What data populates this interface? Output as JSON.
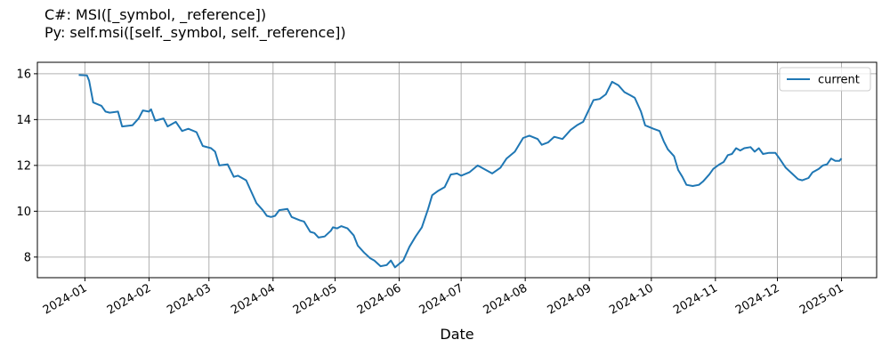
{
  "chart_data": {
    "type": "line",
    "title_lines": [
      "C#: MSI([_symbol, _reference])",
      "Py:  self.msi([self._symbol, self._reference])"
    ],
    "xlabel": "Date",
    "ylabel": "",
    "x_ticks": [
      "2024-01",
      "2024-02",
      "2024-03",
      "2024-04",
      "2024-05",
      "2024-06",
      "2024-07",
      "2024-08",
      "2024-09",
      "2024-10",
      "2024-11",
      "2024-12",
      "2025-01"
    ],
    "y_ticks": [
      8,
      10,
      12,
      14,
      16
    ],
    "xlim": [
      "2023-12-09",
      "2025-01-18"
    ],
    "ylim": [
      7.1,
      16.5
    ],
    "grid": true,
    "legend_position": "top-right",
    "colors": {
      "current": "#1f77b4"
    },
    "series": [
      {
        "name": "current",
        "points": [
          [
            "2023-12-29",
            15.95
          ],
          [
            "2024-01-02",
            15.93
          ],
          [
            "2024-01-03",
            15.7
          ],
          [
            "2024-01-05",
            14.75
          ],
          [
            "2024-01-09",
            14.6
          ],
          [
            "2024-01-11",
            14.35
          ],
          [
            "2024-01-13",
            14.3
          ],
          [
            "2024-01-17",
            14.35
          ],
          [
            "2024-01-19",
            13.7
          ],
          [
            "2024-01-24",
            13.75
          ],
          [
            "2024-01-27",
            14.05
          ],
          [
            "2024-01-29",
            14.4
          ],
          [
            "2024-02-01",
            14.35
          ],
          [
            "2024-02-02",
            14.45
          ],
          [
            "2024-02-04",
            13.95
          ],
          [
            "2024-02-08",
            14.05
          ],
          [
            "2024-02-10",
            13.7
          ],
          [
            "2024-02-14",
            13.9
          ],
          [
            "2024-02-17",
            13.5
          ],
          [
            "2024-02-20",
            13.6
          ],
          [
            "2024-02-24",
            13.45
          ],
          [
            "2024-02-27",
            12.85
          ],
          [
            "2024-03-02",
            12.75
          ],
          [
            "2024-03-04",
            12.6
          ],
          [
            "2024-03-06",
            12.0
          ],
          [
            "2024-03-10",
            12.05
          ],
          [
            "2024-03-13",
            11.5
          ],
          [
            "2024-03-15",
            11.55
          ],
          [
            "2024-03-19",
            11.35
          ],
          [
            "2024-03-21",
            10.95
          ],
          [
            "2024-03-24",
            10.35
          ],
          [
            "2024-03-27",
            10.05
          ],
          [
            "2024-03-29",
            9.8
          ],
          [
            "2024-03-31",
            9.75
          ],
          [
            "2024-04-02",
            9.8
          ],
          [
            "2024-04-04",
            10.05
          ],
          [
            "2024-04-08",
            10.1
          ],
          [
            "2024-04-10",
            9.75
          ],
          [
            "2024-04-14",
            9.6
          ],
          [
            "2024-04-16",
            9.55
          ],
          [
            "2024-04-19",
            9.1
          ],
          [
            "2024-04-21",
            9.05
          ],
          [
            "2024-04-23",
            8.85
          ],
          [
            "2024-04-26",
            8.9
          ],
          [
            "2024-04-29",
            9.15
          ],
          [
            "2024-04-30",
            9.3
          ],
          [
            "2024-05-02",
            9.25
          ],
          [
            "2024-05-04",
            9.35
          ],
          [
            "2024-05-07",
            9.25
          ],
          [
            "2024-05-10",
            8.95
          ],
          [
            "2024-05-12",
            8.5
          ],
          [
            "2024-05-15",
            8.2
          ],
          [
            "2024-05-18",
            7.95
          ],
          [
            "2024-05-20",
            7.85
          ],
          [
            "2024-05-23",
            7.6
          ],
          [
            "2024-05-26",
            7.65
          ],
          [
            "2024-05-28",
            7.85
          ],
          [
            "2024-05-30",
            7.55
          ],
          [
            "2024-06-03",
            7.85
          ],
          [
            "2024-06-06",
            8.45
          ],
          [
            "2024-06-09",
            8.9
          ],
          [
            "2024-06-12",
            9.3
          ],
          [
            "2024-06-15",
            10.1
          ],
          [
            "2024-06-17",
            10.7
          ],
          [
            "2024-06-20",
            10.9
          ],
          [
            "2024-06-23",
            11.05
          ],
          [
            "2024-06-26",
            11.6
          ],
          [
            "2024-06-29",
            11.65
          ],
          [
            "2024-07-01",
            11.55
          ],
          [
            "2024-07-05",
            11.7
          ],
          [
            "2024-07-09",
            12.0
          ],
          [
            "2024-07-12",
            11.85
          ],
          [
            "2024-07-16",
            11.65
          ],
          [
            "2024-07-20",
            11.9
          ],
          [
            "2024-07-23",
            12.3
          ],
          [
            "2024-07-27",
            12.6
          ],
          [
            "2024-07-31",
            13.2
          ],
          [
            "2024-08-03",
            13.3
          ],
          [
            "2024-08-07",
            13.15
          ],
          [
            "2024-08-09",
            12.9
          ],
          [
            "2024-08-12",
            13.0
          ],
          [
            "2024-08-15",
            13.25
          ],
          [
            "2024-08-19",
            13.15
          ],
          [
            "2024-08-23",
            13.55
          ],
          [
            "2024-08-26",
            13.75
          ],
          [
            "2024-08-29",
            13.9
          ],
          [
            "2024-09-03",
            14.85
          ],
          [
            "2024-09-06",
            14.9
          ],
          [
            "2024-09-09",
            15.1
          ],
          [
            "2024-09-12",
            15.65
          ],
          [
            "2024-09-15",
            15.5
          ],
          [
            "2024-09-18",
            15.2
          ],
          [
            "2024-09-21",
            15.05
          ],
          [
            "2024-09-23",
            14.95
          ],
          [
            "2024-09-26",
            14.35
          ],
          [
            "2024-09-28",
            13.75
          ],
          [
            "2024-10-02",
            13.6
          ],
          [
            "2024-10-05",
            13.5
          ],
          [
            "2024-10-07",
            13.05
          ],
          [
            "2024-10-09",
            12.7
          ],
          [
            "2024-10-12",
            12.4
          ],
          [
            "2024-10-14",
            11.8
          ],
          [
            "2024-10-16",
            11.5
          ],
          [
            "2024-10-18",
            11.15
          ],
          [
            "2024-10-21",
            11.1
          ],
          [
            "2024-10-24",
            11.15
          ],
          [
            "2024-10-26",
            11.3
          ],
          [
            "2024-10-29",
            11.6
          ],
          [
            "2024-10-31",
            11.85
          ],
          [
            "2024-11-03",
            12.05
          ],
          [
            "2024-11-05",
            12.15
          ],
          [
            "2024-11-07",
            12.45
          ],
          [
            "2024-11-09",
            12.5
          ],
          [
            "2024-11-11",
            12.75
          ],
          [
            "2024-11-13",
            12.65
          ],
          [
            "2024-11-15",
            12.75
          ],
          [
            "2024-11-18",
            12.8
          ],
          [
            "2024-11-20",
            12.6
          ],
          [
            "2024-11-22",
            12.75
          ],
          [
            "2024-11-24",
            12.5
          ],
          [
            "2024-11-27",
            12.55
          ],
          [
            "2024-11-30",
            12.55
          ],
          [
            "2024-12-02",
            12.3
          ],
          [
            "2024-12-05",
            11.9
          ],
          [
            "2024-12-08",
            11.65
          ],
          [
            "2024-12-11",
            11.4
          ],
          [
            "2024-12-13",
            11.35
          ],
          [
            "2024-12-16",
            11.45
          ],
          [
            "2024-12-18",
            11.7
          ],
          [
            "2024-12-21",
            11.85
          ],
          [
            "2024-12-23",
            12.0
          ],
          [
            "2024-12-25",
            12.05
          ],
          [
            "2024-12-27",
            12.3
          ],
          [
            "2024-12-29",
            12.2
          ],
          [
            "2024-12-31",
            12.2
          ],
          [
            "2025-01-01",
            12.3
          ]
        ]
      }
    ]
  }
}
